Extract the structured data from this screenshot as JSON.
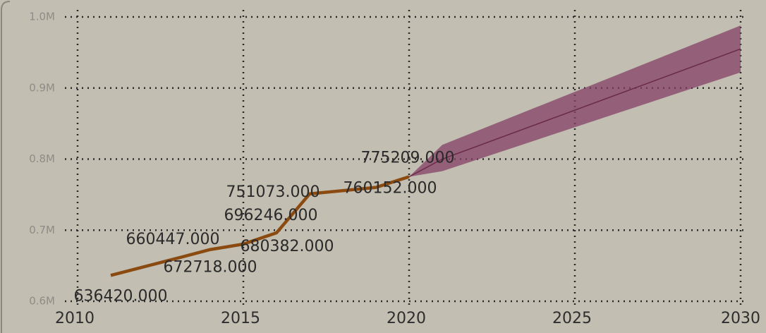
{
  "chart_data": {
    "type": "line",
    "x": [
      2011,
      2013,
      2014,
      2015,
      2016,
      2017,
      2019,
      2020
    ],
    "values": [
      636420,
      660447,
      672718,
      680382,
      696246,
      751073,
      760152,
      775209
    ],
    "value_labels": [
      "636420.000",
      "660447.000",
      "672718.000",
      "680382.000",
      "696246.000",
      "751073.000",
      "760152.000",
      "775209.000"
    ],
    "color": "#8a4a10",
    "forecast": {
      "x": [
        2020,
        2021,
        2030
      ],
      "values": [
        775209,
        800000,
        955000
      ],
      "upper": [
        775209,
        820000,
        988000
      ],
      "lower": [
        775209,
        783000,
        922000
      ],
      "color": "#844066"
    },
    "xlim": [
      2010,
      2030
    ],
    "xticks": [
      2010,
      2015,
      2020,
      2025,
      2030
    ],
    "ylim": [
      600000,
      1000000
    ],
    "yticks": [
      {
        "value": 600000,
        "label": "0.6M"
      },
      {
        "value": 700000,
        "label": "0.7M"
      },
      {
        "value": 800000,
        "label": "0.8M"
      },
      {
        "value": 900000,
        "label": "0.9M"
      },
      {
        "value": 1000000,
        "label": "1.0M"
      }
    ],
    "grid": true
  }
}
